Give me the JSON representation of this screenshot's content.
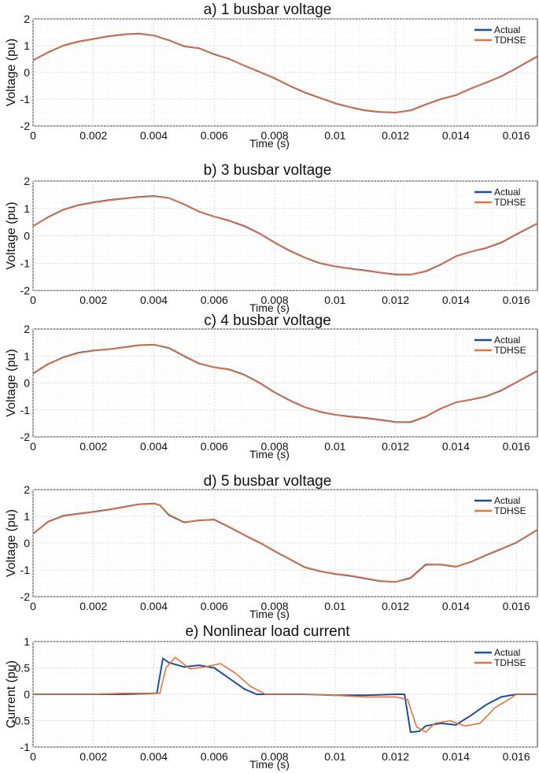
{
  "chart_data": [
    {
      "type": "line",
      "title": "a) 1 busbar voltage",
      "xlabel": "Time (s)",
      "ylabel": "Voltage (pu)",
      "xlim": [
        0,
        0.0167
      ],
      "ylim": [
        -2,
        2
      ],
      "xticks": [
        0,
        0.002,
        0.004,
        0.006,
        0.008,
        0.01,
        0.012,
        0.014,
        0.016
      ],
      "xtick_labels": [
        "0",
        "0.002",
        "0.004",
        "0.006",
        "0.008",
        "0.01",
        "0.012",
        "0.014",
        "0.016"
      ],
      "yticks": [
        -2,
        -1,
        0,
        1,
        2
      ],
      "ytick_labels": [
        "-2",
        "-1",
        "0",
        "1",
        "2"
      ],
      "grid": true,
      "legend_position": "top-right",
      "series": [
        {
          "name": "Actual",
          "color": "#1f4e9c",
          "x": [
            0,
            0.0005,
            0.001,
            0.0015,
            0.002,
            0.0025,
            0.003,
            0.0035,
            0.004,
            0.0045,
            0.005,
            0.0055,
            0.006,
            0.0065,
            0.007,
            0.0075,
            0.008,
            0.0085,
            0.009,
            0.0095,
            0.01,
            0.0105,
            0.011,
            0.0115,
            0.012,
            0.0125,
            0.013,
            0.0135,
            0.014,
            0.0145,
            0.015,
            0.0155,
            0.016,
            0.0167
          ],
          "y": [
            0.45,
            0.75,
            1.0,
            1.15,
            1.25,
            1.35,
            1.42,
            1.45,
            1.38,
            1.2,
            0.98,
            0.9,
            0.68,
            0.5,
            0.25,
            0.02,
            -0.22,
            -0.5,
            -0.75,
            -0.95,
            -1.15,
            -1.3,
            -1.42,
            -1.48,
            -1.5,
            -1.42,
            -1.2,
            -1.0,
            -0.85,
            -0.6,
            -0.38,
            -0.15,
            0.15,
            0.6
          ]
        },
        {
          "name": "TDHSE",
          "color": "#e8743b",
          "x": [
            0,
            0.0005,
            0.001,
            0.0015,
            0.002,
            0.0025,
            0.003,
            0.0035,
            0.004,
            0.0045,
            0.005,
            0.0055,
            0.006,
            0.0065,
            0.007,
            0.0075,
            0.008,
            0.0085,
            0.009,
            0.0095,
            0.01,
            0.0105,
            0.011,
            0.0115,
            0.012,
            0.0125,
            0.013,
            0.0135,
            0.014,
            0.0145,
            0.015,
            0.0155,
            0.016,
            0.0167
          ],
          "y": [
            0.45,
            0.74,
            0.99,
            1.14,
            1.24,
            1.34,
            1.41,
            1.44,
            1.38,
            1.19,
            0.99,
            0.89,
            0.69,
            0.49,
            0.26,
            0.03,
            -0.21,
            -0.49,
            -0.74,
            -0.94,
            -1.14,
            -1.29,
            -1.41,
            -1.47,
            -1.5,
            -1.43,
            -1.21,
            -1.01,
            -0.84,
            -0.61,
            -0.37,
            -0.16,
            0.14,
            0.59
          ]
        }
      ]
    },
    {
      "type": "line",
      "title": "b) 3 busbar voltage",
      "xlabel": "Time (s)",
      "ylabel": "Voltage (pu)",
      "xlim": [
        0,
        0.0167
      ],
      "ylim": [
        -2,
        2
      ],
      "xticks": [
        0,
        0.002,
        0.004,
        0.006,
        0.008,
        0.01,
        0.012,
        0.014,
        0.016
      ],
      "xtick_labels": [
        "0",
        "0.002",
        "0.004",
        "0.006",
        "0.008",
        "0.01",
        "0.012",
        "0.014",
        "0.016"
      ],
      "yticks": [
        -2,
        -1,
        0,
        1,
        2
      ],
      "ytick_labels": [
        "-2",
        "-1",
        "0",
        "1",
        "2"
      ],
      "grid": true,
      "legend_position": "top-right",
      "series": [
        {
          "name": "Actual",
          "color": "#1f4e9c",
          "x": [
            0,
            0.0005,
            0.001,
            0.0015,
            0.002,
            0.0025,
            0.003,
            0.0035,
            0.004,
            0.0045,
            0.005,
            0.0055,
            0.006,
            0.0065,
            0.007,
            0.0075,
            0.008,
            0.0085,
            0.009,
            0.0095,
            0.01,
            0.0105,
            0.011,
            0.0115,
            0.012,
            0.0125,
            0.013,
            0.0135,
            0.014,
            0.0145,
            0.015,
            0.0155,
            0.016,
            0.0167
          ],
          "y": [
            0.35,
            0.68,
            0.95,
            1.12,
            1.22,
            1.3,
            1.36,
            1.42,
            1.45,
            1.38,
            1.15,
            0.88,
            0.7,
            0.55,
            0.35,
            0.08,
            -0.25,
            -0.55,
            -0.8,
            -1.0,
            -1.12,
            -1.2,
            -1.27,
            -1.35,
            -1.42,
            -1.42,
            -1.3,
            -1.05,
            -0.75,
            -0.58,
            -0.45,
            -0.25,
            0.05,
            0.45
          ]
        },
        {
          "name": "TDHSE",
          "color": "#e8743b",
          "x": [
            0,
            0.0005,
            0.001,
            0.0015,
            0.002,
            0.0025,
            0.003,
            0.0035,
            0.004,
            0.0045,
            0.005,
            0.0055,
            0.006,
            0.0065,
            0.007,
            0.0075,
            0.008,
            0.0085,
            0.009,
            0.0095,
            0.01,
            0.0105,
            0.011,
            0.0115,
            0.012,
            0.0125,
            0.013,
            0.0135,
            0.014,
            0.0145,
            0.015,
            0.0155,
            0.016,
            0.0167
          ],
          "y": [
            0.35,
            0.67,
            0.94,
            1.11,
            1.21,
            1.29,
            1.35,
            1.41,
            1.44,
            1.38,
            1.16,
            0.89,
            0.7,
            0.54,
            0.34,
            0.07,
            -0.26,
            -0.56,
            -0.8,
            -0.99,
            -1.12,
            -1.21,
            -1.28,
            -1.35,
            -1.43,
            -1.42,
            -1.29,
            -1.04,
            -0.76,
            -0.58,
            -0.44,
            -0.24,
            0.06,
            0.46
          ]
        }
      ]
    },
    {
      "type": "line",
      "title": "c) 4 busbar voltage",
      "xlabel": "Time (s)",
      "ylabel": "Voltage (pu)",
      "xlim": [
        0,
        0.0167
      ],
      "ylim": [
        -2,
        2
      ],
      "xticks": [
        0,
        0.002,
        0.004,
        0.006,
        0.008,
        0.01,
        0.012,
        0.014,
        0.016
      ],
      "xtick_labels": [
        "0",
        "0.002",
        "0.004",
        "0.006",
        "0.008",
        "0.01",
        "0.012",
        "0.014",
        "0.016"
      ],
      "yticks": [
        -2,
        -1,
        0,
        1,
        2
      ],
      "ytick_labels": [
        "-2",
        "-1",
        "0",
        "1",
        "2"
      ],
      "grid": true,
      "legend_position": "top-right",
      "series": [
        {
          "name": "Actual",
          "color": "#1f4e9c",
          "x": [
            0,
            0.0005,
            0.001,
            0.0015,
            0.002,
            0.0025,
            0.003,
            0.0035,
            0.004,
            0.0045,
            0.005,
            0.0055,
            0.006,
            0.0065,
            0.007,
            0.0075,
            0.008,
            0.0085,
            0.009,
            0.0095,
            0.01,
            0.0105,
            0.011,
            0.0115,
            0.012,
            0.0125,
            0.013,
            0.0135,
            0.014,
            0.0145,
            0.015,
            0.0155,
            0.016,
            0.0167
          ],
          "y": [
            0.35,
            0.7,
            0.95,
            1.12,
            1.2,
            1.25,
            1.32,
            1.4,
            1.42,
            1.3,
            1.0,
            0.72,
            0.58,
            0.5,
            0.3,
            0.0,
            -0.35,
            -0.65,
            -0.9,
            -1.07,
            -1.18,
            -1.25,
            -1.3,
            -1.37,
            -1.45,
            -1.45,
            -1.25,
            -0.95,
            -0.72,
            -0.62,
            -0.5,
            -0.28,
            0.02,
            0.45
          ]
        },
        {
          "name": "TDHSE",
          "color": "#e8743b",
          "x": [
            0,
            0.0005,
            0.001,
            0.0015,
            0.002,
            0.0025,
            0.003,
            0.0035,
            0.004,
            0.0045,
            0.005,
            0.0055,
            0.006,
            0.0065,
            0.007,
            0.0075,
            0.008,
            0.0085,
            0.009,
            0.0095,
            0.01,
            0.0105,
            0.011,
            0.0115,
            0.012,
            0.0125,
            0.013,
            0.0135,
            0.014,
            0.0145,
            0.015,
            0.0155,
            0.016,
            0.0167
          ],
          "y": [
            0.35,
            0.69,
            0.94,
            1.11,
            1.19,
            1.25,
            1.31,
            1.39,
            1.42,
            1.31,
            1.01,
            0.73,
            0.58,
            0.49,
            0.29,
            -0.01,
            -0.36,
            -0.66,
            -0.9,
            -1.06,
            -1.18,
            -1.26,
            -1.31,
            -1.38,
            -1.46,
            -1.44,
            -1.24,
            -0.94,
            -0.72,
            -0.61,
            -0.49,
            -0.27,
            0.03,
            0.46
          ]
        }
      ]
    },
    {
      "type": "line",
      "title": "d) 5   busbar voltage",
      "xlabel": "Time (s)",
      "ylabel": "Voltage (pu)",
      "xlim": [
        0,
        0.0167
      ],
      "ylim": [
        -2,
        2
      ],
      "xticks": [
        0,
        0.002,
        0.004,
        0.006,
        0.008,
        0.01,
        0.012,
        0.014,
        0.016
      ],
      "xtick_labels": [
        "0",
        "0.002",
        "0.004",
        "0.006",
        "0.008",
        "0.01",
        "0.012",
        "0.014",
        "0.016"
      ],
      "yticks": [
        -2,
        -1,
        0,
        1,
        2
      ],
      "ytick_labels": [
        "-2",
        "-1",
        "0",
        "1",
        "2"
      ],
      "grid": true,
      "legend_position": "top-right",
      "series": [
        {
          "name": "Actual",
          "color": "#1f4e9c",
          "x": [
            0,
            0.0005,
            0.001,
            0.0015,
            0.002,
            0.0025,
            0.003,
            0.0035,
            0.004,
            0.0042,
            0.0045,
            0.005,
            0.0055,
            0.006,
            0.0065,
            0.007,
            0.0075,
            0.008,
            0.0085,
            0.009,
            0.0095,
            0.01,
            0.0105,
            0.011,
            0.0115,
            0.012,
            0.0125,
            0.013,
            0.0135,
            0.014,
            0.0145,
            0.015,
            0.0155,
            0.016,
            0.0167
          ],
          "y": [
            0.35,
            0.8,
            1.02,
            1.1,
            1.17,
            1.25,
            1.35,
            1.45,
            1.48,
            1.42,
            1.05,
            0.78,
            0.85,
            0.88,
            0.6,
            0.3,
            0.02,
            -0.3,
            -0.6,
            -0.9,
            -1.05,
            -1.15,
            -1.22,
            -1.32,
            -1.42,
            -1.45,
            -1.3,
            -0.8,
            -0.8,
            -0.88,
            -0.7,
            -0.45,
            -0.22,
            0.02,
            0.5
          ]
        },
        {
          "name": "TDHSE",
          "color": "#e8743b",
          "x": [
            0,
            0.0005,
            0.001,
            0.0015,
            0.002,
            0.0025,
            0.003,
            0.0035,
            0.004,
            0.0042,
            0.0045,
            0.005,
            0.0055,
            0.006,
            0.0065,
            0.007,
            0.0075,
            0.008,
            0.0085,
            0.009,
            0.0095,
            0.01,
            0.0105,
            0.011,
            0.0115,
            0.012,
            0.0125,
            0.013,
            0.0135,
            0.014,
            0.0145,
            0.015,
            0.0155,
            0.016,
            0.0167
          ],
          "y": [
            0.35,
            0.79,
            1.01,
            1.09,
            1.16,
            1.24,
            1.34,
            1.44,
            1.47,
            1.42,
            1.07,
            0.79,
            0.84,
            0.89,
            0.61,
            0.31,
            0.03,
            -0.29,
            -0.59,
            -0.89,
            -1.04,
            -1.14,
            -1.21,
            -1.31,
            -1.41,
            -1.45,
            -1.32,
            -0.82,
            -0.79,
            -0.87,
            -0.71,
            -0.44,
            -0.21,
            0.03,
            0.51
          ]
        }
      ]
    },
    {
      "type": "line",
      "title": "e) Nonlinear load current",
      "xlabel": "Time (s)",
      "ylabel": "Current (pu)",
      "xlim": [
        0,
        0.0167
      ],
      "ylim": [
        -1,
        1
      ],
      "xticks": [
        0,
        0.002,
        0.004,
        0.006,
        0.008,
        0.01,
        0.012,
        0.014,
        0.016
      ],
      "xtick_labels": [
        "0",
        "0.002",
        "0.004",
        "0.006",
        "0.008",
        "0.01",
        "0.012",
        "0.014",
        "0.016"
      ],
      "yticks": [
        -1,
        -0.5,
        0,
        0.5,
        1
      ],
      "ytick_labels": [
        "-1",
        "-0.5",
        "0",
        "0.5",
        "1"
      ],
      "grid": true,
      "legend_position": "top-right",
      "series": [
        {
          "name": "Actual",
          "color": "#1f4e9c",
          "x": [
            0,
            0.001,
            0.002,
            0.003,
            0.0041,
            0.0043,
            0.0045,
            0.005,
            0.0055,
            0.006,
            0.0065,
            0.007,
            0.0074,
            0.008,
            0.009,
            0.01,
            0.011,
            0.012,
            0.0123,
            0.0125,
            0.0128,
            0.013,
            0.0135,
            0.014,
            0.0145,
            0.015,
            0.0155,
            0.016,
            0.0167
          ],
          "y": [
            0,
            0,
            0,
            0,
            0.02,
            0.68,
            0.6,
            0.52,
            0.55,
            0.5,
            0.3,
            0.1,
            0.0,
            0.0,
            0.0,
            -0.02,
            -0.02,
            0.0,
            0.0,
            -0.72,
            -0.7,
            -0.6,
            -0.55,
            -0.58,
            -0.4,
            -0.2,
            -0.05,
            0.0,
            0.0
          ]
        },
        {
          "name": "TDHSE",
          "color": "#e8743b",
          "x": [
            0,
            0.001,
            0.002,
            0.003,
            0.0042,
            0.0044,
            0.0047,
            0.0052,
            0.0057,
            0.0062,
            0.0067,
            0.0072,
            0.0077,
            0.008,
            0.009,
            0.01,
            0.011,
            0.012,
            0.0124,
            0.0127,
            0.013,
            0.0133,
            0.0138,
            0.0143,
            0.0148,
            0.0153,
            0.0158,
            0.016,
            0.0167
          ],
          "y": [
            0,
            0,
            0,
            0.02,
            0.02,
            0.5,
            0.7,
            0.48,
            0.52,
            0.58,
            0.4,
            0.15,
            0.0,
            0.0,
            0.0,
            -0.02,
            -0.05,
            -0.05,
            -0.1,
            -0.62,
            -0.72,
            -0.55,
            -0.5,
            -0.6,
            -0.55,
            -0.25,
            -0.08,
            0.0,
            0.0
          ]
        }
      ]
    }
  ]
}
